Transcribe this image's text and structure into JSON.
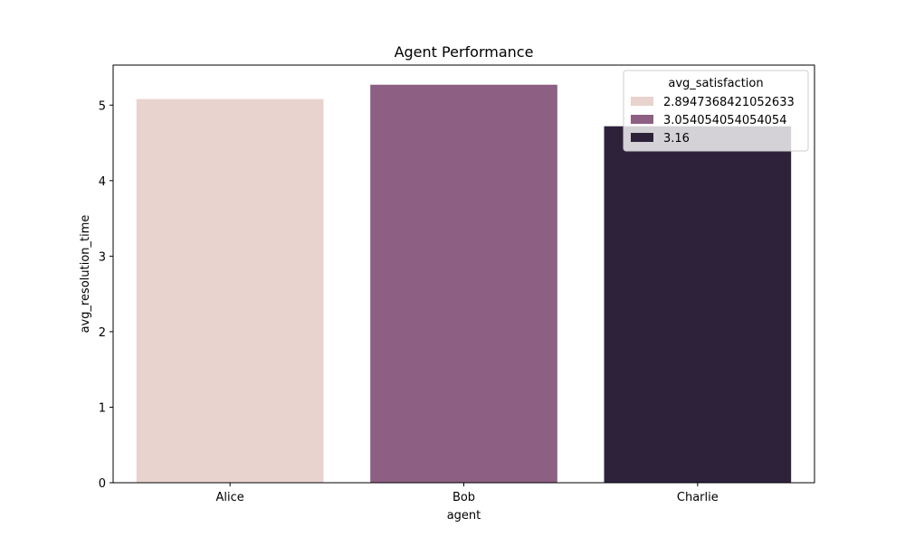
{
  "chart_data": {
    "type": "bar",
    "title": "Agent Performance",
    "xlabel": "agent",
    "ylabel": "avg_resolution_time",
    "categories": [
      "Alice",
      "Bob",
      "Charlie"
    ],
    "values": [
      5.08,
      5.27,
      4.72
    ],
    "ylim": [
      0,
      5.53
    ],
    "yticks": [
      "0",
      "1",
      "2",
      "3",
      "4",
      "5"
    ],
    "bar_colors": [
      "#e8d3ce",
      "#8d5f82",
      "#2e223b"
    ],
    "grid": false,
    "legend": {
      "title": "avg_satisfaction",
      "placement": "top-right",
      "entries": [
        {
          "label": "2.8947368421052633",
          "color": "#e8d3ce"
        },
        {
          "label": "3.054054054054054",
          "color": "#8d5f82"
        },
        {
          "label": "3.16",
          "color": "#2e223b"
        }
      ]
    }
  }
}
